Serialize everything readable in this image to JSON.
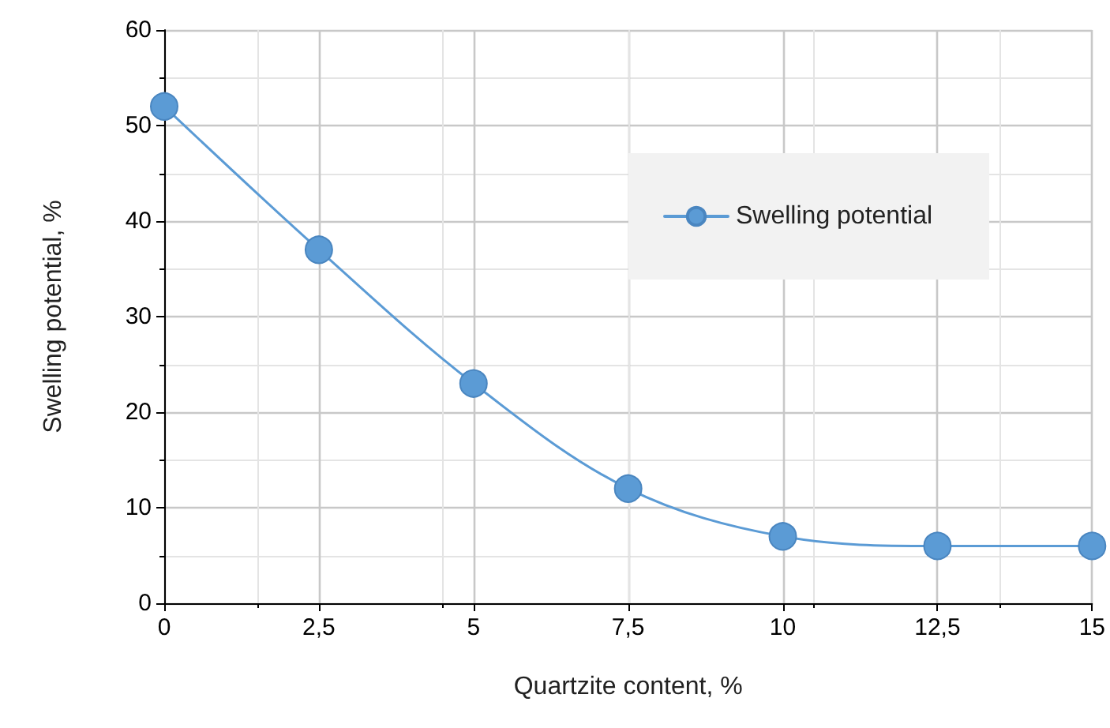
{
  "chart_data": {
    "type": "line",
    "xlabel": "Quartzite content, %",
    "ylabel": "Swelling potential, %",
    "x": [
      0,
      2.5,
      5,
      7.5,
      10,
      12.5,
      15
    ],
    "series": [
      {
        "name": "Swelling potential",
        "color": "#5b9bd5",
        "values": [
          52,
          37,
          23,
          12,
          7,
          6,
          6
        ]
      }
    ],
    "xlim": [
      0,
      15
    ],
    "xticks": [
      0,
      {
        "value": 2.5,
        "label": "2,5"
      },
      5,
      {
        "value": 7.5,
        "label": "7,5"
      },
      10,
      {
        "value": 12.5,
        "label": "12,5"
      },
      15
    ],
    "ylim": [
      0,
      60
    ],
    "yticks": [
      0,
      10,
      20,
      30,
      40,
      50,
      60
    ],
    "grid": true,
    "legend": "right",
    "marker": "circle",
    "line_style": "solid"
  }
}
